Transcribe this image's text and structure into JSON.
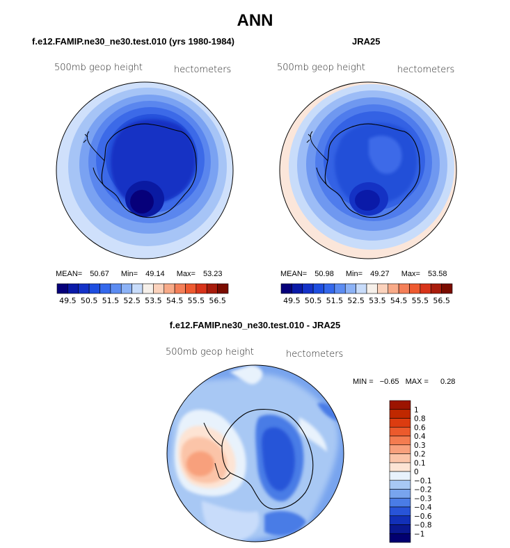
{
  "main_title": "ANN",
  "panel_left": {
    "case_title": "f.e12.FAMIP.ne30_ne30.test.010 (yrs 1980-1984)",
    "variable": "500mb geop height",
    "units": "hectometers",
    "mean_label": "MEAN=",
    "mean": "50.67",
    "min_label": "Min=",
    "min": "49.14",
    "max_label": "Max=",
    "max": "53.23"
  },
  "panel_right": {
    "case_title": "JRA25",
    "variable": "500mb geop height",
    "units": "hectometers",
    "mean_label": "MEAN=",
    "mean": "50.98",
    "min_label": "Min=",
    "min": "49.27",
    "max_label": "Max=",
    "max": "53.58"
  },
  "panel_diff": {
    "case_title": "f.e12.FAMIP.ne30_ne30.test.010 - JRA25",
    "variable": "500mb geop height",
    "units": "hectometers",
    "min_label": "MIN =",
    "min": "−0.65",
    "max_label": "MAX =",
    "max": "0.28"
  },
  "chart_data": [
    {
      "type": "heatmap",
      "projection": "south-polar stereographic",
      "title": "f.e12.FAMIP.ne30_ne30.test.010 (yrs 1980-1984)",
      "field": "500mb geop height",
      "units": "hectometers",
      "stats": {
        "mean": 50.67,
        "min": 49.14,
        "max": 53.23
      },
      "colorbar": {
        "orientation": "horizontal",
        "levels": [
          49.5,
          50,
          50.5,
          51,
          51.5,
          52,
          52.5,
          53,
          53.5,
          54,
          54.5,
          55,
          55.5,
          56,
          56.5
        ],
        "tick_labels": [
          "49.5",
          "50.5",
          "51.5",
          "52.5",
          "53.5",
          "54.5",
          "55.5",
          "56.5"
        ],
        "colors": [
          "#06007a",
          "#0a1aa8",
          "#1432c8",
          "#1e4ee0",
          "#3468ec",
          "#5c8cf2",
          "#8cb2f6",
          "#c8dcfa",
          "#f6f0ea",
          "#fbd2bc",
          "#f8aa88",
          "#f47f58",
          "#ee5a30",
          "#d8341a",
          "#a81c0c",
          "#7a0c00"
        ]
      }
    },
    {
      "type": "heatmap",
      "projection": "south-polar stereographic",
      "title": "JRA25",
      "field": "500mb geop height",
      "units": "hectometers",
      "stats": {
        "mean": 50.98,
        "min": 49.27,
        "max": 53.58
      },
      "colorbar": {
        "orientation": "horizontal",
        "levels": [
          49.5,
          50,
          50.5,
          51,
          51.5,
          52,
          52.5,
          53,
          53.5,
          54,
          54.5,
          55,
          55.5,
          56,
          56.5
        ],
        "tick_labels": [
          "49.5",
          "50.5",
          "51.5",
          "52.5",
          "53.5",
          "54.5",
          "55.5",
          "56.5"
        ],
        "colors": [
          "#06007a",
          "#0a1aa8",
          "#1432c8",
          "#1e4ee0",
          "#3468ec",
          "#5c8cf2",
          "#8cb2f6",
          "#c8dcfa",
          "#f6f0ea",
          "#fbd2bc",
          "#f8aa88",
          "#f47f58",
          "#ee5a30",
          "#d8341a",
          "#a81c0c",
          "#7a0c00"
        ]
      }
    },
    {
      "type": "heatmap",
      "projection": "south-polar stereographic",
      "title": "f.e12.FAMIP.ne30_ne30.test.010 - JRA25",
      "field": "500mb geop height",
      "units": "hectometers",
      "stats": {
        "min": -0.65,
        "max": 0.28
      },
      "colorbar": {
        "orientation": "vertical",
        "levels": [
          1,
          0.8,
          0.6,
          0.4,
          0.3,
          0.2,
          0.1,
          0,
          -0.1,
          -0.2,
          -0.3,
          -0.4,
          -0.6,
          -0.8,
          -1
        ],
        "tick_labels": [
          "1",
          "0.8",
          "0.6",
          "0.4",
          "0.3",
          "0.2",
          "0.1",
          "0",
          "−0.1",
          "−0.2",
          "−0.3",
          "−0.4",
          "−0.6",
          "−0.8",
          "−1"
        ],
        "colors": [
          "#9c1400",
          "#c02800",
          "#dc3c10",
          "#ec5a2c",
          "#f47c50",
          "#f8a07c",
          "#fbc4a8",
          "#fde4d4",
          "#e8f2fc",
          "#a8c8f4",
          "#78a4ee",
          "#4a7ce6",
          "#2854d8",
          "#1230b8",
          "#0a1890",
          "#020070"
        ]
      }
    }
  ]
}
